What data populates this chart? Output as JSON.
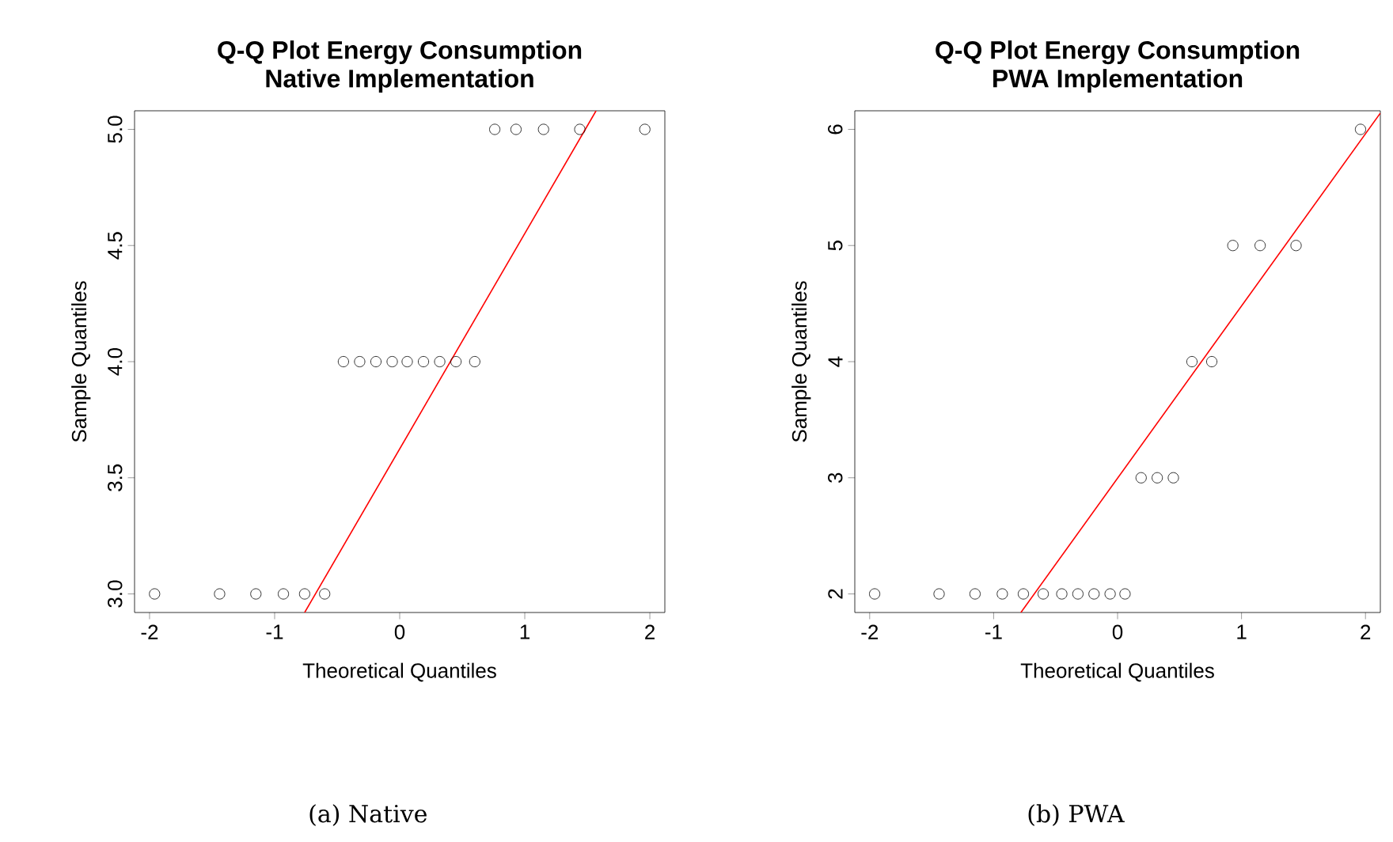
{
  "chart_data": [
    {
      "type": "scatter",
      "title": "Q-Q Plot Energy Consumption",
      "subtitle": "Native Implementation",
      "xlabel": "Theoretical Quantiles",
      "ylabel": "Sample Quantiles",
      "xlim": [
        -2.12,
        2.12
      ],
      "ylim": [
        2.92,
        5.08
      ],
      "xticks": [
        -2,
        -1,
        0,
        1,
        2
      ],
      "yticks": [
        {
          "value": 3,
          "label": "3.0"
        },
        {
          "value": 3.5,
          "label": "3.5"
        },
        {
          "value": 4,
          "label": "4.0"
        },
        {
          "value": 4.5,
          "label": "4.5"
        },
        {
          "value": 5,
          "label": "5.0"
        }
      ],
      "series": [
        {
          "marker": "circle",
          "color": "#000000",
          "x": [
            -1.96,
            -1.44,
            -1.15,
            -0.93,
            -0.76,
            -0.6,
            -0.45,
            -0.32,
            -0.19,
            -0.06,
            0.06,
            0.19,
            0.32,
            0.45,
            0.6,
            0.76,
            0.93,
            1.15,
            1.44,
            1.96
          ],
          "values": [
            3,
            3,
            3,
            3,
            3,
            3,
            4,
            4,
            4,
            4,
            4,
            4,
            4,
            4,
            4,
            5,
            5,
            5,
            5,
            5
          ]
        },
        {
          "type": "line",
          "marker": "none",
          "color": "#ff0000",
          "x": [
            -0.76,
            1.57
          ],
          "values": [
            2.92,
            5.08
          ]
        }
      ],
      "annotations": [
        "(a) Native"
      ]
    },
    {
      "type": "scatter",
      "title": "Q-Q Plot Energy Consumption",
      "subtitle": "PWA Implementation",
      "xlabel": "Theoretical Quantiles",
      "ylabel": "Sample Quantiles",
      "xlim": [
        -2.12,
        2.12
      ],
      "ylim": [
        1.84,
        6.16
      ],
      "xticks": [
        -2,
        -1,
        0,
        1,
        2
      ],
      "yticks": [
        2,
        3,
        4,
        5,
        6
      ],
      "series": [
        {
          "marker": "circle",
          "color": "#000000",
          "x": [
            -1.96,
            -1.44,
            -1.15,
            -0.93,
            -0.76,
            -0.6,
            -0.45,
            -0.32,
            -0.19,
            -0.06,
            0.06,
            0.19,
            0.32,
            0.45,
            0.6,
            0.76,
            0.93,
            1.15,
            1.44,
            1.96
          ],
          "values": [
            2,
            2,
            2,
            2,
            2,
            2,
            2,
            2,
            2,
            2,
            2,
            3,
            3,
            3,
            4,
            4,
            5,
            5,
            5,
            6
          ]
        },
        {
          "type": "line",
          "marker": "none",
          "color": "#ff0000",
          "x": [
            -0.78,
            2.12
          ],
          "values": [
            1.84,
            6.14
          ]
        }
      ],
      "annotations": [
        "(b) PWA"
      ]
    }
  ]
}
